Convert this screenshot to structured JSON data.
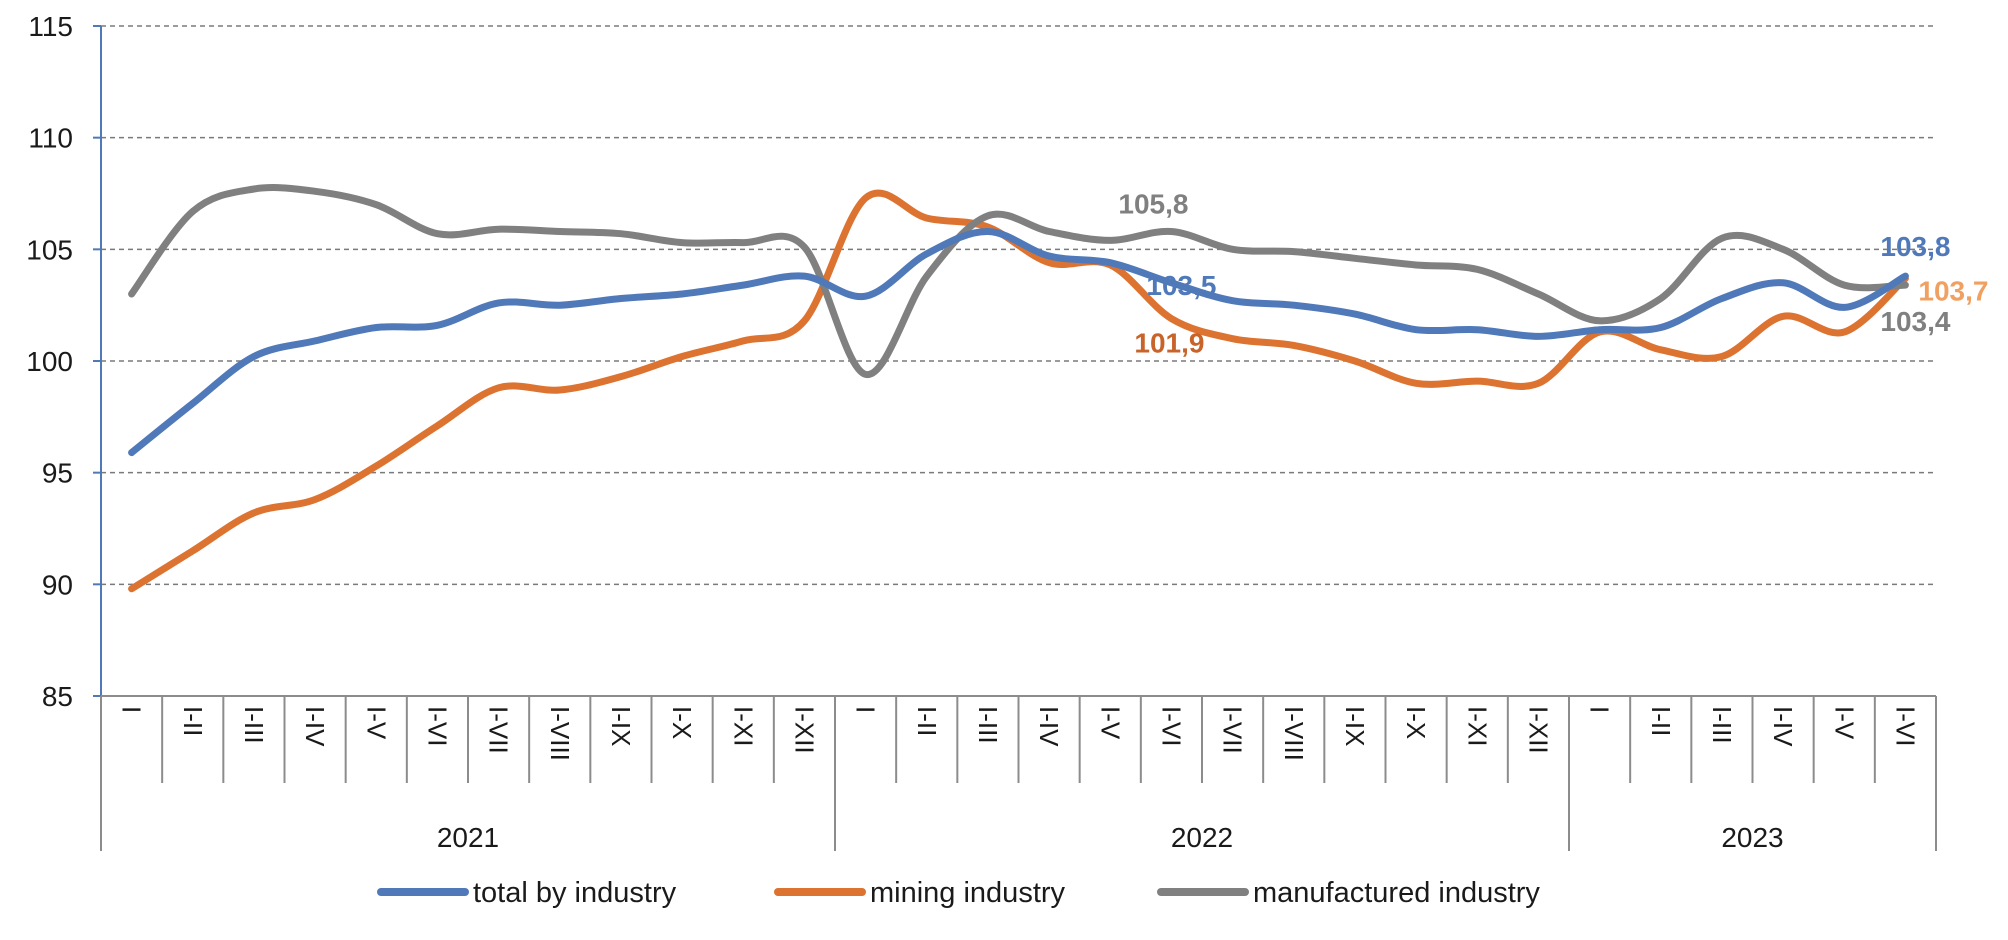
{
  "chart_data": {
    "type": "line",
    "title": "",
    "xlabel": "",
    "ylabel": "",
    "ylim": [
      85,
      115
    ],
    "yticks": [
      85,
      90,
      95,
      100,
      105,
      110,
      115
    ],
    "grid": "horizontal dashed",
    "legend_position": "bottom",
    "x_groups": [
      {
        "year": "2021",
        "periods": [
          "I",
          "I-II",
          "I-III",
          "I-IV",
          "I-V",
          "I-VI",
          "I-VII",
          "I-VIII",
          "I-IX",
          "I-X",
          "I-XI",
          "I-XII"
        ]
      },
      {
        "year": "2022",
        "periods": [
          "I",
          "I-II",
          "I-III",
          "I-IV",
          "I-V",
          "I-VI",
          "I-VII",
          "I-VIII",
          "I-IX",
          "I-X",
          "I-XI",
          "I-XII"
        ]
      },
      {
        "year": "2023",
        "periods": [
          "I",
          "I-II",
          "I-III",
          "I-IV",
          "I-V",
          "I-VI"
        ]
      }
    ],
    "series": [
      {
        "name": "total by industry",
        "color": "#4f79b8",
        "values": [
          95.9,
          98.1,
          100.2,
          100.9,
          101.5,
          101.6,
          102.6,
          102.5,
          102.8,
          103.0,
          103.4,
          103.8,
          102.9,
          104.8,
          105.8,
          104.7,
          104.4,
          103.5,
          102.7,
          102.5,
          102.1,
          101.4,
          101.4,
          101.1,
          101.4,
          101.5,
          102.8,
          103.5,
          102.4,
          103.8
        ],
        "labels": [
          {
            "index": 17,
            "text": "103,5"
          },
          {
            "index": 29,
            "text": "103,8"
          }
        ]
      },
      {
        "name": "mining industry",
        "color": "#dd7330",
        "values": [
          89.8,
          91.5,
          93.2,
          93.8,
          95.3,
          97.1,
          98.8,
          98.7,
          99.3,
          100.2,
          100.9,
          101.8,
          107.3,
          106.4,
          106.0,
          104.4,
          104.3,
          101.9,
          101.0,
          100.7,
          100.0,
          99.0,
          99.1,
          99.0,
          101.3,
          100.5,
          100.2,
          102.0,
          101.3,
          103.7
        ],
        "labels": [
          {
            "index": 17,
            "text": "101,9"
          },
          {
            "index": 29,
            "text": "103,7"
          }
        ]
      },
      {
        "name": "manufactured industry",
        "color": "#808080",
        "values": [
          103.0,
          106.7,
          107.7,
          107.6,
          107.0,
          105.7,
          105.9,
          105.8,
          105.7,
          105.3,
          105.3,
          105.1,
          99.4,
          103.8,
          106.5,
          105.8,
          105.4,
          105.8,
          105.0,
          104.9,
          104.6,
          104.3,
          104.1,
          103.0,
          101.8,
          102.8,
          105.5,
          105.0,
          103.4,
          103.4
        ],
        "labels": [
          {
            "index": 17,
            "text": "105,8"
          },
          {
            "index": 29,
            "text": "103,4"
          }
        ]
      }
    ]
  }
}
